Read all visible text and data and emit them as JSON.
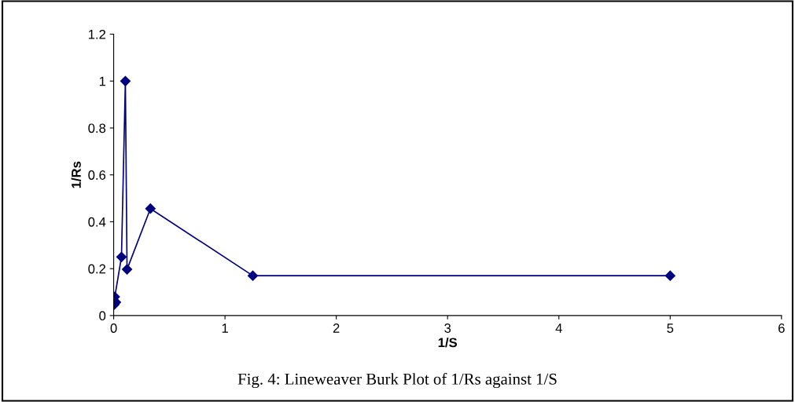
{
  "chart_data": {
    "type": "line",
    "xlabel": "1/S",
    "ylabel": "1/Rs",
    "annotations": [
      "Fig. 4: Lineweaver Burk Plot of 1/Rs against 1/S"
    ],
    "series": [
      {
        "color": "#000080",
        "x": [
          0.005,
          0.02,
          0.01,
          0.07,
          0.105,
          0.12,
          0.33,
          1.25,
          5
        ],
        "values": [
          0.047,
          0.057,
          0.08,
          0.25,
          1.0,
          0.197,
          0.456,
          0.17,
          0.17
        ]
      }
    ],
    "xlim": [
      0,
      6
    ],
    "xticks": [
      0,
      1,
      2,
      3,
      4,
      5,
      6
    ],
    "ylim": [
      0,
      1.2
    ],
    "yticks": [
      0,
      {
        "value": 0.2,
        "label": "0.2"
      },
      {
        "value": 0.4,
        "label": "0.4"
      },
      {
        "value": 0.6,
        "label": "0.6"
      },
      {
        "value": 0.8,
        "label": "0.8"
      },
      1,
      {
        "value": 1.2,
        "label": "1.2"
      }
    ],
    "marker": "diamond",
    "line_style": "solid",
    "grid": false
  }
}
